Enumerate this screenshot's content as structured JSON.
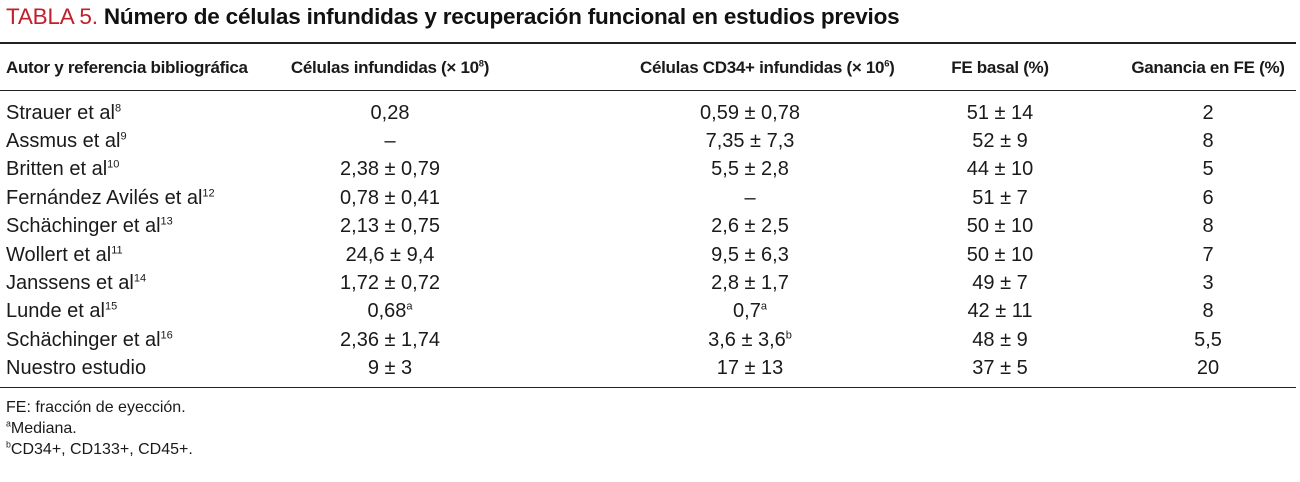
{
  "title": {
    "label": "TABLA 5.",
    "text": "Número de células infundidas y recuperación funcional en estudios previos"
  },
  "table": {
    "headers": [
      {
        "text": "Autor y referencia bibliográfica",
        "sup": ""
      },
      {
        "text": "Células infundidas (× 10",
        "sup": "8",
        "suffix": ")"
      },
      {
        "text": "Células CD34+ infundidas (× 10",
        "sup": "6",
        "suffix": ")"
      },
      {
        "text": "FE basal (%)",
        "sup": ""
      },
      {
        "text": "Ganancia en FE (%)",
        "sup": ""
      }
    ],
    "rows": [
      [
        {
          "t": "Strauer et al",
          "s": "8"
        },
        {
          "t": "0,28",
          "s": ""
        },
        {
          "t": "0,59 ± 0,78",
          "s": ""
        },
        {
          "t": "51 ± 14",
          "s": ""
        },
        {
          "t": "2",
          "s": ""
        }
      ],
      [
        {
          "t": "Assmus et al",
          "s": "9"
        },
        {
          "t": "–",
          "s": ""
        },
        {
          "t": "7,35 ± 7,3",
          "s": ""
        },
        {
          "t": "52 ± 9",
          "s": ""
        },
        {
          "t": "8",
          "s": ""
        }
      ],
      [
        {
          "t": "Britten et al",
          "s": "10"
        },
        {
          "t": "2,38 ± 0,79",
          "s": ""
        },
        {
          "t": "5,5 ± 2,8",
          "s": ""
        },
        {
          "t": "44 ± 10",
          "s": ""
        },
        {
          "t": "5",
          "s": ""
        }
      ],
      [
        {
          "t": "Fernández Avilés et al",
          "s": "12"
        },
        {
          "t": "0,78 ± 0,41",
          "s": ""
        },
        {
          "t": "–",
          "s": ""
        },
        {
          "t": "51 ± 7",
          "s": ""
        },
        {
          "t": "6",
          "s": ""
        }
      ],
      [
        {
          "t": "Schächinger et al",
          "s": "13"
        },
        {
          "t": "2,13 ± 0,75",
          "s": ""
        },
        {
          "t": "2,6 ± 2,5",
          "s": ""
        },
        {
          "t": "50 ± 10",
          "s": ""
        },
        {
          "t": "8",
          "s": ""
        }
      ],
      [
        {
          "t": "Wollert et al",
          "s": "11"
        },
        {
          "t": "24,6 ± 9,4",
          "s": ""
        },
        {
          "t": "9,5 ± 6,3",
          "s": ""
        },
        {
          "t": "50 ± 10",
          "s": ""
        },
        {
          "t": "7",
          "s": ""
        }
      ],
      [
        {
          "t": "Janssens et al",
          "s": "14"
        },
        {
          "t": "1,72 ± 0,72",
          "s": ""
        },
        {
          "t": "2,8 ± 1,7",
          "s": ""
        },
        {
          "t": "49 ± 7",
          "s": ""
        },
        {
          "t": "3",
          "s": ""
        }
      ],
      [
        {
          "t": "Lunde et al",
          "s": "15"
        },
        {
          "t": "0,68",
          "s": "a"
        },
        {
          "t": "0,7",
          "s": "a"
        },
        {
          "t": "42 ± 11",
          "s": ""
        },
        {
          "t": "8",
          "s": ""
        }
      ],
      [
        {
          "t": "Schächinger et al",
          "s": "16"
        },
        {
          "t": "2,36 ± 1,74",
          "s": ""
        },
        {
          "t": "3,6 ± 3,6",
          "s": "b"
        },
        {
          "t": "48 ± 9",
          "s": ""
        },
        {
          "t": "5,5",
          "s": ""
        }
      ],
      [
        {
          "t": "Nuestro estudio",
          "s": ""
        },
        {
          "t": "9 ± 3",
          "s": ""
        },
        {
          "t": "17 ± 13",
          "s": ""
        },
        {
          "t": "37 ± 5",
          "s": ""
        },
        {
          "t": "20",
          "s": ""
        }
      ]
    ]
  },
  "notes": [
    {
      "sup": "",
      "text": "FE: fracción de eyección."
    },
    {
      "sup": "a",
      "text": "Mediana."
    },
    {
      "sup": "b",
      "text": "CD34+, CD133+, CD45+."
    }
  ]
}
